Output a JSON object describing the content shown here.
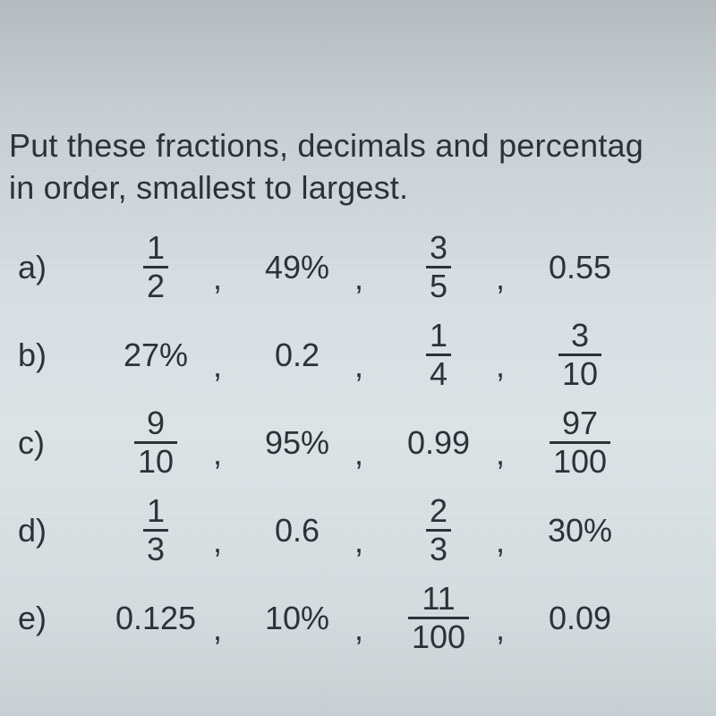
{
  "instruction": {
    "line1": "Put these fractions, decimals and percentag",
    "line2": "in order, smallest to largest."
  },
  "rows": [
    {
      "label": "a)",
      "items": [
        {
          "type": "frac",
          "num": "1",
          "den": "2"
        },
        {
          "type": "text",
          "value": "49%"
        },
        {
          "type": "frac",
          "num": "3",
          "den": "5"
        },
        {
          "type": "text",
          "value": "0.55"
        }
      ]
    },
    {
      "label": "b)",
      "items": [
        {
          "type": "text",
          "value": "27%"
        },
        {
          "type": "text",
          "value": "0.2"
        },
        {
          "type": "frac",
          "num": "1",
          "den": "4"
        },
        {
          "type": "frac",
          "num": "3",
          "den": "10"
        }
      ]
    },
    {
      "label": "c)",
      "items": [
        {
          "type": "frac",
          "num": "9",
          "den": "10"
        },
        {
          "type": "text",
          "value": "95%"
        },
        {
          "type": "text",
          "value": "0.99"
        },
        {
          "type": "frac",
          "num": "97",
          "den": "100"
        }
      ]
    },
    {
      "label": "d)",
      "items": [
        {
          "type": "frac",
          "num": "1",
          "den": "3"
        },
        {
          "type": "text",
          "value": "0.6"
        },
        {
          "type": "frac",
          "num": "2",
          "den": "3"
        },
        {
          "type": "text",
          "value": "30%"
        }
      ]
    },
    {
      "label": "e)",
      "items": [
        {
          "type": "text",
          "value": "0.125"
        },
        {
          "type": "text",
          "value": "10%"
        },
        {
          "type": "frac",
          "num": "11",
          "den": "100"
        },
        {
          "type": "text",
          "value": "0.09"
        }
      ]
    }
  ],
  "colors": {
    "text": "#2a3438",
    "bg_top": "#b5bcc0",
    "bg_mid": "#dde4e7",
    "bg_bot": "#c8d0d4"
  },
  "fontsize": 36
}
